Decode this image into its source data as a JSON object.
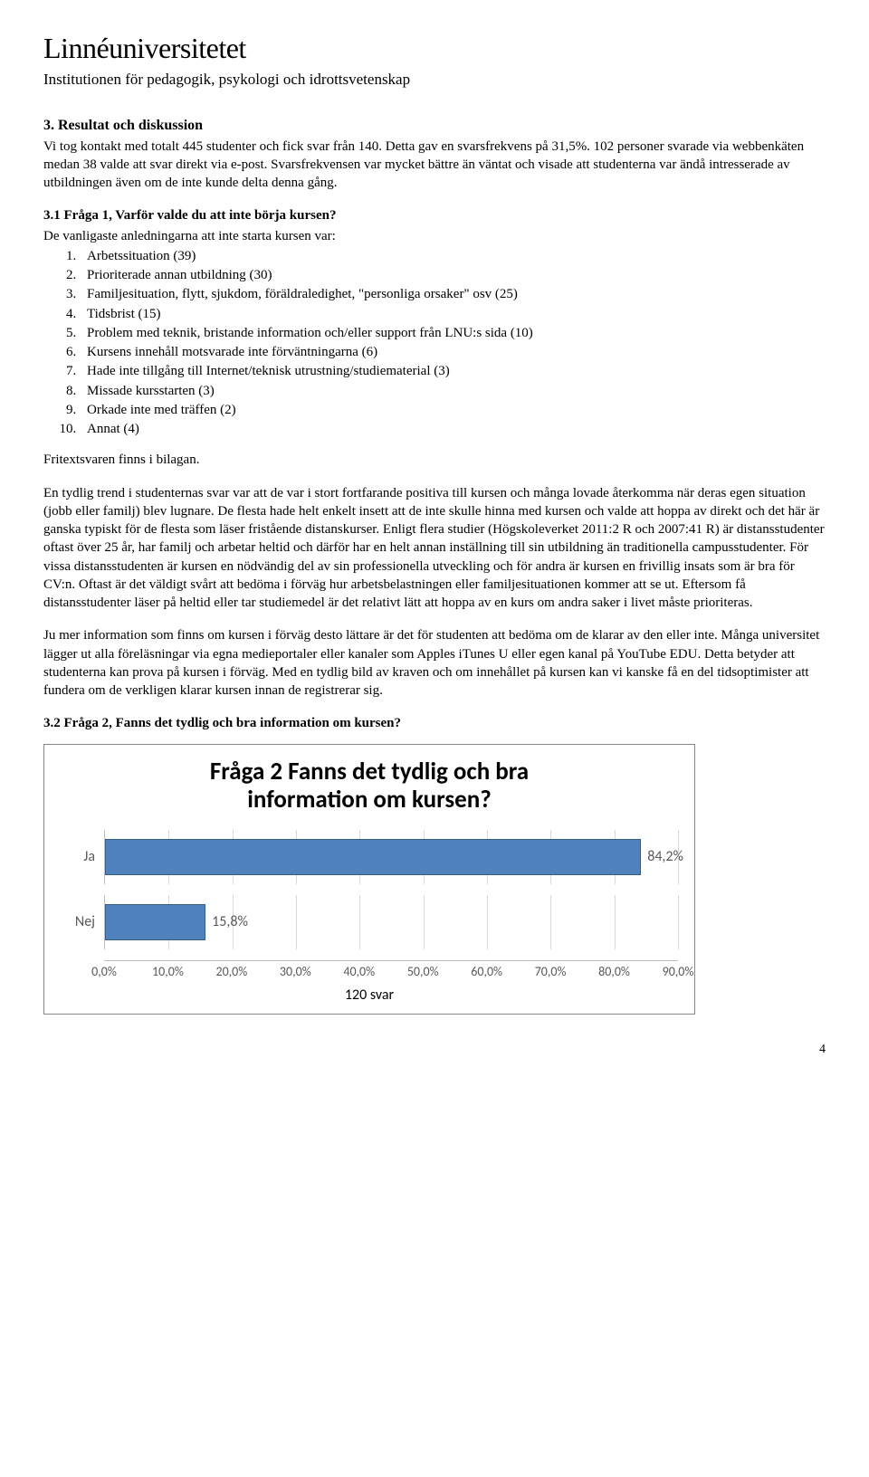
{
  "header": {
    "logo_name": "Linnéuniversitetet",
    "logo_sub": "Institutionen för pedagogik, psykologi och idrottsvetenskap"
  },
  "section": {
    "heading": "3. Resultat och diskussion",
    "para1": "Vi tog kontakt med totalt 445 studenter och fick svar från 140. Detta gav en svarsfrekvens på 31,5%. 102 personer svarade via webbenkäten medan 38 valde att svar direkt via e-post. Svarsfrekvensen var mycket bättre än väntat och visade att studenterna var ändå intresserade av utbildningen även om de inte kunde delta denna gång."
  },
  "q1": {
    "heading": "3.1 Fråga 1, Varför valde du att inte börja kursen?",
    "intro": "De vanligaste anledningarna att inte starta kursen var:",
    "items": [
      "Arbetssituation (39)",
      "Prioriterade annan utbildning (30)",
      "Familjesituation, flytt, sjukdom, föräldraledighet, \"personliga orsaker\" osv (25)",
      "Tidsbrist (15)",
      "Problem med teknik, bristande information och/eller support från LNU:s sida (10)",
      "Kursens innehåll motsvarade inte förväntningarna (6)",
      "Hade inte tillgång till Internet/teknisk utrustning/studiematerial (3)",
      "Missade kursstarten (3)",
      "Orkade inte med träffen (2)",
      "Annat (4)"
    ],
    "footnote": "Fritextsvaren finns i bilagan."
  },
  "discussion": {
    "para1": "En tydlig trend i studenternas svar var att de var i stort fortfarande positiva till kursen och många lovade återkomma när deras egen situation (jobb eller familj) blev lugnare. De flesta hade helt enkelt insett att de inte skulle hinna med kursen och valde att hoppa av direkt och det här är ganska typiskt för de flesta som läser fristående distanskurser. Enligt flera studier (Högskoleverket 2011:2 R och 2007:41 R) är distansstudenter oftast över 25 år, har familj och arbetar heltid och därför har en helt annan inställning till sin utbildning än traditionella campusstudenter. För vissa distansstudenten är kursen en nödvändig del av sin professionella utveckling och för andra är kursen en frivillig insats som är bra för CV:n. Oftast är det väldigt svårt att bedöma i förväg hur arbetsbelastningen eller familjesituationen kommer att se ut. Eftersom få distansstudenter läser på heltid eller tar studiemedel är det relativt lätt att hoppa av en kurs om andra saker i livet måste prioriteras.",
    "para2": "Ju mer information som finns om kursen i förväg desto lättare är det för studenten att bedöma om de klarar av den eller inte. Många universitet lägger ut alla föreläsningar via egna medieportaler eller kanaler som Apples iTunes U eller egen kanal på YouTube EDU. Detta betyder att studenterna kan prova på kursen i förväg. Med en tydlig bild av kraven och om innehållet på kursen kan vi kanske få en del tidsoptimister att fundera om de verkligen klarar kursen innan de registrerar sig."
  },
  "q2": {
    "heading": "3.2 Fråga 2, Fanns det tydlig och bra information om kursen?"
  },
  "chart": {
    "title_line1": "Fråga 2 Fanns det tydlig och bra",
    "title_line2": "information om kursen?",
    "title_fontsize": 27,
    "type": "bar-horizontal",
    "categories": [
      "Ja",
      "Nej"
    ],
    "values": [
      84.2,
      15.8
    ],
    "value_labels": [
      "84,2%",
      "15,8%"
    ],
    "bar_color": "#4f81bd",
    "bar_border": "#385d8a",
    "xlim": [
      0,
      90
    ],
    "xtick_step": 10,
    "xtick_labels": [
      "0,0%",
      "10,0%",
      "20,0%",
      "30,0%",
      "40,0%",
      "50,0%",
      "60,0%",
      "70,0%",
      "80,0%",
      "90,0%"
    ],
    "grid_color": "#d9d9d9",
    "axis_color": "#bfbfbf",
    "label_color": "#595959",
    "label_fontsize": 16,
    "tick_fontsize": 14,
    "footer": "120 svar",
    "background_color": "#ffffff"
  },
  "page_number": "4"
}
